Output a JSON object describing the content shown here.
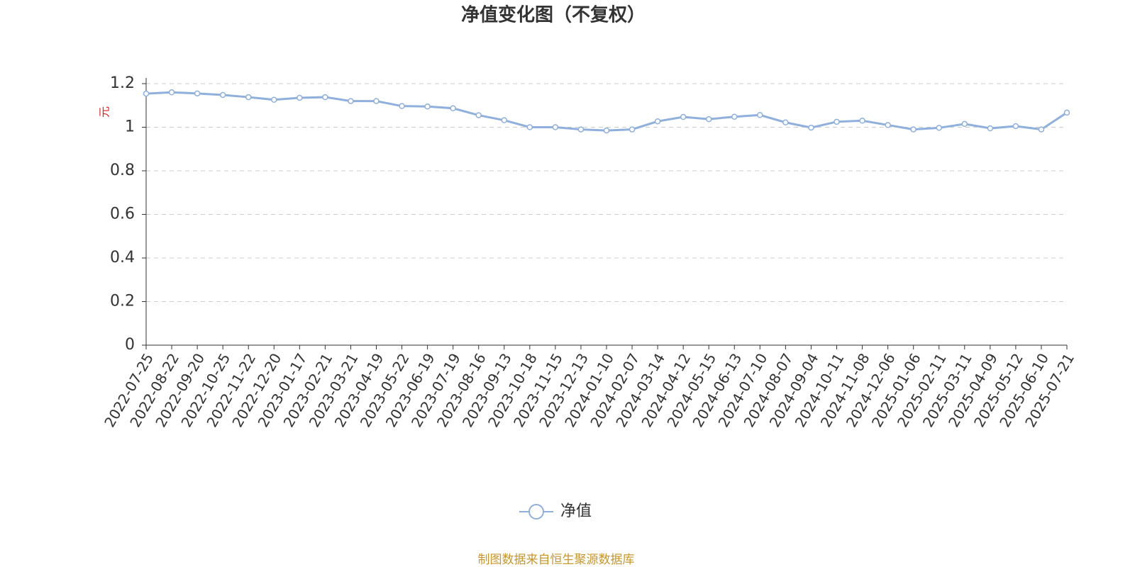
{
  "chart_data": {
    "type": "line",
    "title": "净值变化图（不复权）",
    "y_label": "元",
    "source": "制图数据来自恒生聚源数据库",
    "categories": [
      "2022-07-25",
      "2022-08-22",
      "2022-09-20",
      "2022-10-25",
      "2022-11-22",
      "2022-12-20",
      "2023-01-17",
      "2023-02-21",
      "2023-03-21",
      "2023-04-19",
      "2023-05-22",
      "2023-06-19",
      "2023-07-19",
      "2023-08-16",
      "2023-09-13",
      "2023-10-18",
      "2023-11-15",
      "2023-12-13",
      "2024-01-10",
      "2024-02-07",
      "2024-03-14",
      "2024-04-12",
      "2024-05-15",
      "2024-06-13",
      "2024-07-10",
      "2024-08-07",
      "2024-09-04",
      "2024-10-11",
      "2024-11-08",
      "2024-12-06",
      "2025-01-06",
      "2025-02-11",
      "2025-03-11",
      "2025-04-09",
      "2025-05-12",
      "2025-06-10",
      "2025-07-21"
    ],
    "series": [
      {
        "name": "净值",
        "color": "#8fb0dc",
        "values": [
          1.154,
          1.16,
          1.155,
          1.148,
          1.138,
          1.126,
          1.135,
          1.138,
          1.12,
          1.12,
          1.097,
          1.095,
          1.087,
          1.055,
          1.032,
          1.0,
          1.0,
          0.99,
          0.985,
          0.99,
          1.027,
          1.047,
          1.037,
          1.048,
          1.056,
          1.022,
          0.998,
          1.025,
          1.03,
          1.01,
          0.99,
          0.997,
          1.015,
          0.995,
          1.005,
          0.99,
          1.067
        ]
      }
    ],
    "ylim": [
      0,
      1.2
    ],
    "yticks": [
      0,
      0.2,
      0.4,
      0.6,
      0.8,
      1,
      1.2
    ],
    "grid": true
  }
}
